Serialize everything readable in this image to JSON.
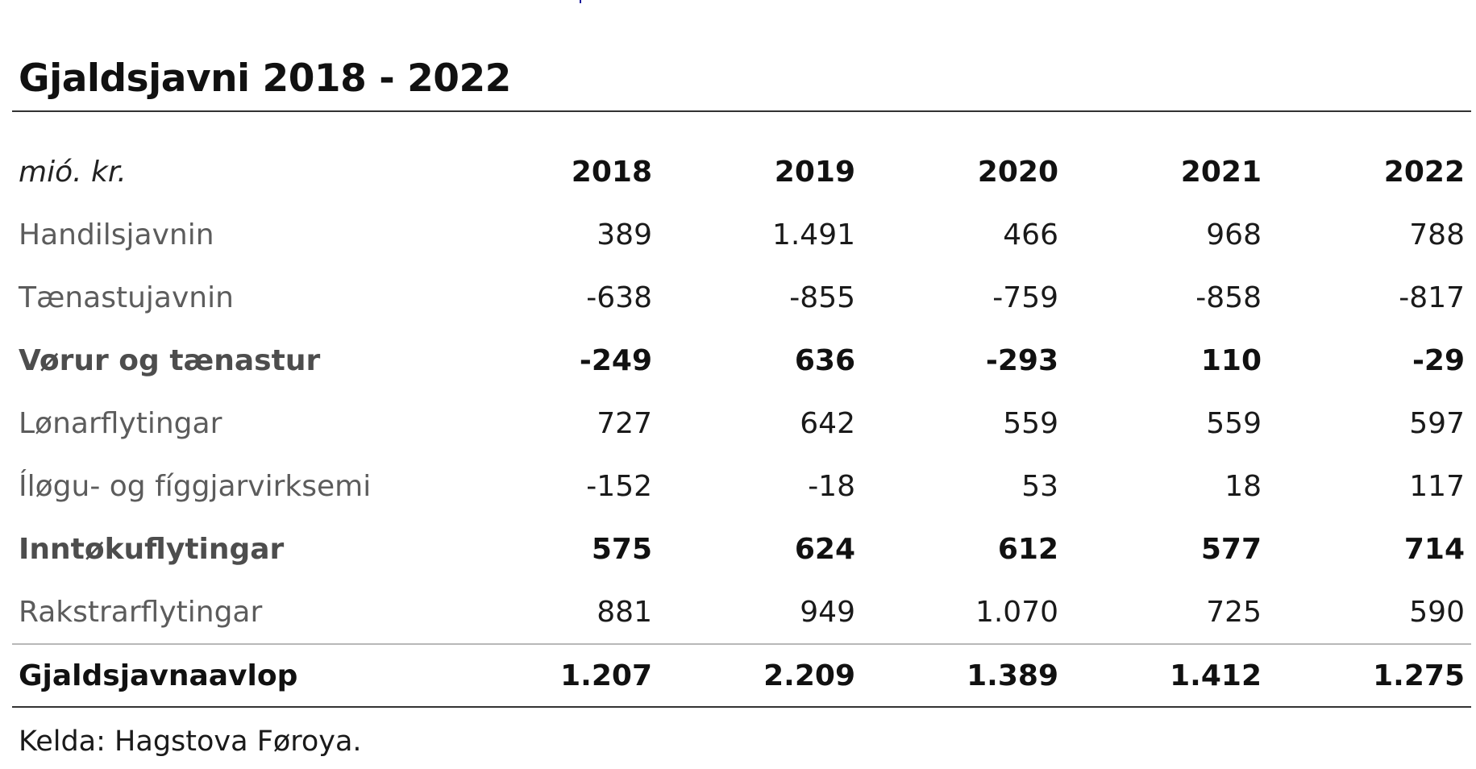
{
  "title": "Gjaldsjavni 2018 - 2022",
  "table": {
    "unit_label": "mió. kr.",
    "years": [
      "2018",
      "2019",
      "2020",
      "2021",
      "2022"
    ],
    "rows": [
      {
        "label": "Handilsjavnin",
        "values": [
          "389",
          "1.491",
          "466",
          "968",
          "788"
        ],
        "bold": false
      },
      {
        "label": "Tænastujavnin",
        "values": [
          "-638",
          "-855",
          "-759",
          "-858",
          "-817"
        ],
        "bold": false
      },
      {
        "label": "Vørur og tænastur",
        "values": [
          "-249",
          "636",
          "-293",
          "110",
          "-29"
        ],
        "bold": true
      },
      {
        "label": "Lønarflytingar",
        "values": [
          "727",
          "642",
          "559",
          "559",
          "597"
        ],
        "bold": false
      },
      {
        "label": "Íløgu- og fíggjarvirksemi",
        "values": [
          "-152",
          "-18",
          "53",
          "18",
          "117"
        ],
        "bold": false
      },
      {
        "label": "Inntøkuflytingar",
        "values": [
          "575",
          "624",
          "612",
          "577",
          "714"
        ],
        "bold": true
      },
      {
        "label": "Rakstrarflytingar",
        "values": [
          "881",
          "949",
          "1.070",
          "725",
          "590"
        ],
        "bold": false
      }
    ],
    "total": {
      "label": "Gjaldsjavnaavlop",
      "values": [
        "1.207",
        "2.209",
        "1.389",
        "1.412",
        "1.275"
      ]
    }
  },
  "source": "Kelda: Hagstova Føroya."
}
